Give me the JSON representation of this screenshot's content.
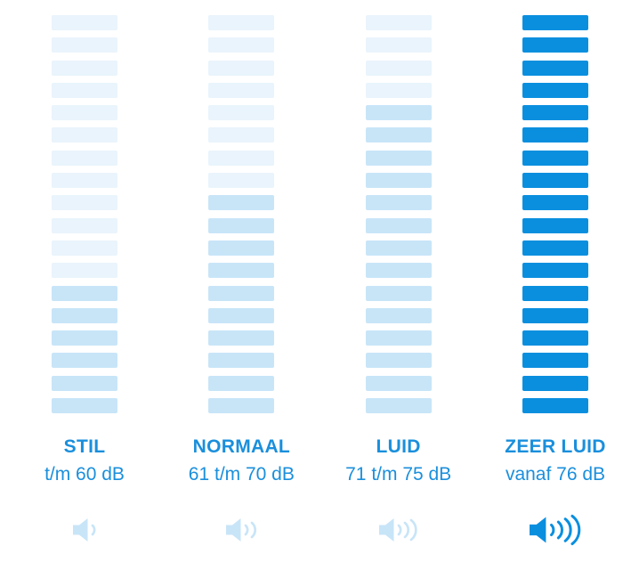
{
  "chart_data": {
    "type": "bar",
    "title": "",
    "description": "Sound loudness scale infographic with four vertical segmented level meters (18 segments each), Dutch labels, dB ranges and speaker icons",
    "categories": [
      "STIL",
      "NORMAAL",
      "LUID",
      "ZEER LUID"
    ],
    "value_labels": [
      "t/m 60 dB",
      "61 t/m 70 dB",
      "71 t/m 75 dB",
      "vanaf 76 dB"
    ],
    "segments_per_column": 18,
    "series": [
      {
        "name": "filled_segments",
        "values": [
          6,
          10,
          14,
          18
        ]
      },
      {
        "name": "unfilled_segments",
        "values": [
          12,
          8,
          4,
          0
        ]
      }
    ],
    "sound_wave_counts": [
      1,
      2,
      3,
      4
    ],
    "legend_position": "none",
    "grid": false
  },
  "colors": {
    "background": "#ffffff",
    "bar_inactive": "#e9f4fc",
    "bar_active_light": "#c8e5f8",
    "bar_active_strong": "#0a8fdf",
    "text_blue": "#1a8fdc"
  },
  "columns": [
    {
      "name": "STIL",
      "range": "t/m 60 dB",
      "total_bars": 18,
      "inactive_bars": 12,
      "fill_color": "#c8e5f8",
      "inactive_color": "#e9f4fc",
      "sound_waves": 1,
      "icon_color": "#c8e5f8",
      "icon_scale": 1.0
    },
    {
      "name": "NORMAAL",
      "range": "61 t/m 70 dB",
      "total_bars": 18,
      "inactive_bars": 8,
      "fill_color": "#c8e5f8",
      "inactive_color": "#e9f4fc",
      "sound_waves": 2,
      "icon_color": "#c8e5f8",
      "icon_scale": 1.0
    },
    {
      "name": "LUID",
      "range": "71 t/m 75 dB",
      "total_bars": 18,
      "inactive_bars": 4,
      "fill_color": "#c8e5f8",
      "inactive_color": "#e9f4fc",
      "sound_waves": 3,
      "icon_color": "#c8e5f8",
      "icon_scale": 1.0
    },
    {
      "name": "ZEER LUID",
      "range": "vanaf 76 dB",
      "total_bars": 18,
      "inactive_bars": 0,
      "fill_color": "#0a8fdf",
      "inactive_color": "#e9f4fc",
      "sound_waves": 4,
      "icon_color": "#0a8fdf",
      "icon_scale": 1.12
    }
  ]
}
